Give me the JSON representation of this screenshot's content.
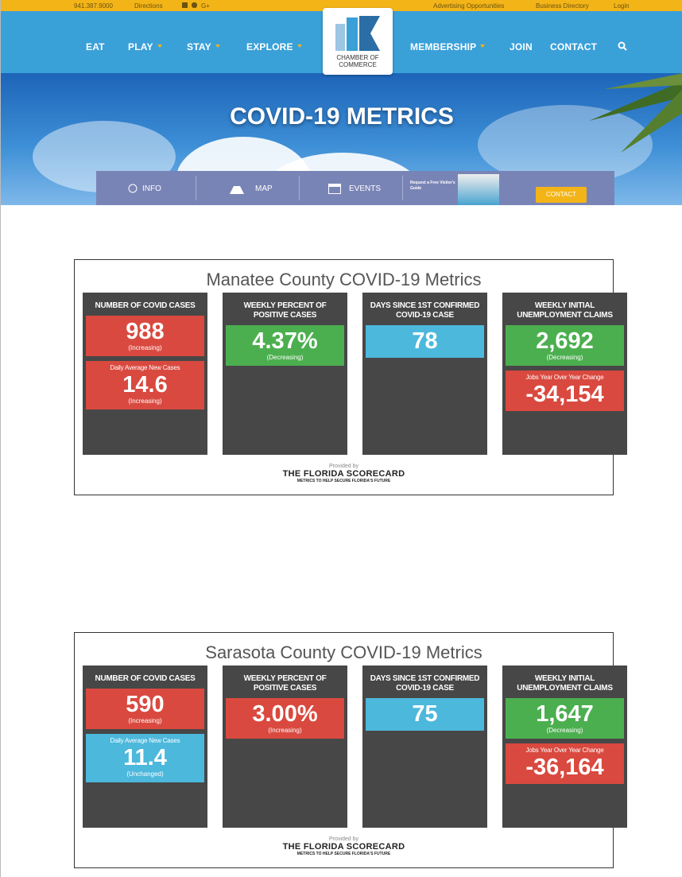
{
  "topbar": {
    "phone": "941.387.9000",
    "directions": "Directions",
    "social": "G+",
    "links": [
      "Advertising Opportunities",
      "Business Directory",
      "Login"
    ]
  },
  "nav": {
    "left": [
      "EAT",
      "PLAY",
      "STAY",
      "EXPLORE"
    ],
    "logo": "CHAMBER OF COMMERCE",
    "right": [
      "MEMBERSHIP",
      "JOIN",
      "CONTACT"
    ]
  },
  "hero": {
    "title": "COVID-19 METRICS"
  },
  "subnav": {
    "items": [
      "INFO",
      "MAP",
      "EVENTS"
    ],
    "guide": "Request a Free Visitor's Guide",
    "contact": "CONTACT"
  },
  "dashboards": [
    {
      "title": "Manatee County COVID-19 Metrics",
      "columns": [
        {
          "heading": "NUMBER OF COVID CASES",
          "boxes": [
            {
              "value": "988",
              "status": "(Increasing)",
              "color": "#d9493f"
            },
            {
              "label": "Daily Average New Cases",
              "value": "14.6",
              "status": "(Increasing)",
              "color": "#d9493f"
            }
          ]
        },
        {
          "heading": "WEEKLY PERCENT OF POSITIVE CASES",
          "boxes": [
            {
              "value": "4.37%",
              "status": "(Decreasing)",
              "color": "#4caf4f"
            }
          ]
        },
        {
          "heading": "DAYS SINCE 1ST CONFIRMED COVID-19 CASE",
          "boxes": [
            {
              "value": "78",
              "color": "#4cb8dc"
            }
          ]
        },
        {
          "heading": "WEEKLY INITIAL UNEMPLOYMENT CLAIMS",
          "boxes": [
            {
              "value": "2,692",
              "status": "(Decreasing)",
              "color": "#4caf4f"
            },
            {
              "label": "Jobs Year Over Year Change",
              "value": "-34,154",
              "color": "#d9493f"
            }
          ]
        }
      ],
      "provided": "Provided by",
      "brand": "THE FLORIDA SCORECARD",
      "tagline": "METRICS TO HELP SECURE FLORIDA'S FUTURE"
    },
    {
      "title": "Sarasota County COVID-19 Metrics",
      "columns": [
        {
          "heading": "NUMBER OF COVID CASES",
          "boxes": [
            {
              "value": "590",
              "status": "(Increasing)",
              "color": "#d9493f"
            },
            {
              "label": "Daily Average New Cases",
              "value": "11.4",
              "status": "(Unchanged)",
              "color": "#4cb8dc"
            }
          ]
        },
        {
          "heading": "WEEKLY PERCENT OF POSITIVE CASES",
          "boxes": [
            {
              "value": "3.00%",
              "status": "(Increasing)",
              "color": "#d9493f"
            }
          ]
        },
        {
          "heading": "DAYS SINCE 1ST CONFIRMED COVID-19 CASE",
          "boxes": [
            {
              "value": "75",
              "color": "#4cb8dc"
            }
          ]
        },
        {
          "heading": "WEEKLY INITIAL UNEMPLOYMENT CLAIMS",
          "boxes": [
            {
              "value": "1,647",
              "status": "(Decreasing)",
              "color": "#4caf4f"
            },
            {
              "label": "Jobs Year Over Year Change",
              "value": "-36,164",
              "color": "#d9493f"
            }
          ]
        }
      ],
      "provided": "Provided by",
      "brand": "THE FLORIDA SCORECARD",
      "tagline": "METRICS TO HELP SECURE FLORIDA'S FUTURE"
    }
  ]
}
